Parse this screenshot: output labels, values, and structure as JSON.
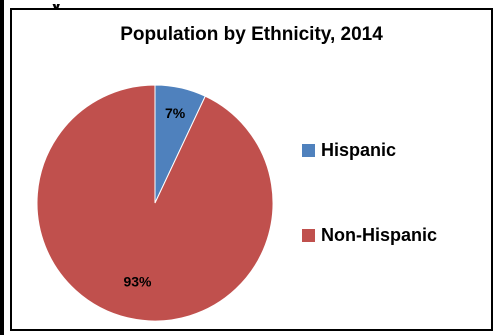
{
  "chart_data": {
    "type": "pie",
    "title": "Population by Ethnicity, 2014",
    "categories": [
      "Hispanic",
      "Non-Hispanic"
    ],
    "values": [
      7,
      93
    ],
    "data_labels": [
      "7%",
      "93%"
    ],
    "colors": [
      "#4F81BD",
      "#C0504D"
    ],
    "legend_position": "right"
  },
  "header_fragment": "y"
}
